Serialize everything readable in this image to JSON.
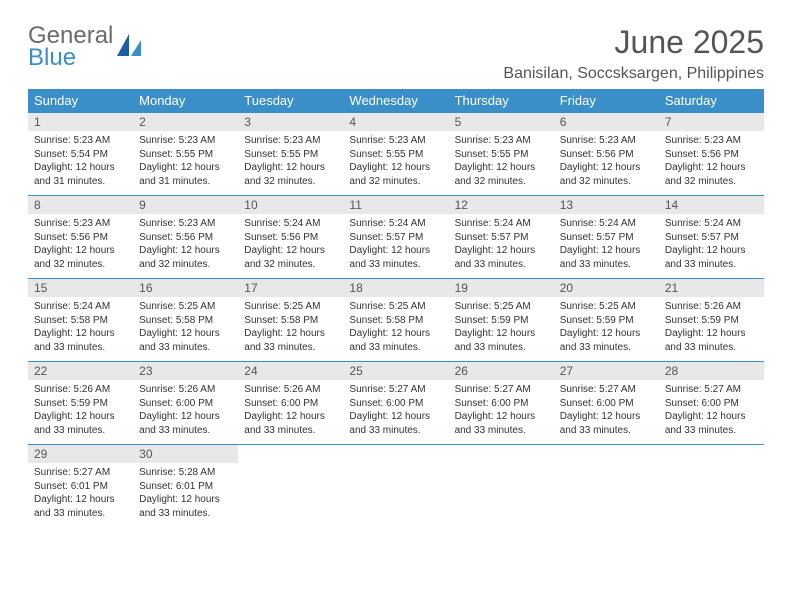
{
  "logo": {
    "line1": "General",
    "line2": "Blue"
  },
  "colors": {
    "brand_blue": "#3a8fc9",
    "text_gray": "#6b6b6b"
  },
  "title": "June 2025",
  "location": "Banisilan, Soccsksargen, Philippines",
  "weekdays": [
    "Sunday",
    "Monday",
    "Tuesday",
    "Wednesday",
    "Thursday",
    "Friday",
    "Saturday"
  ],
  "days": [
    {
      "n": "1",
      "sunrise": "5:23 AM",
      "sunset": "5:54 PM",
      "daylight": "12 hours and 31 minutes."
    },
    {
      "n": "2",
      "sunrise": "5:23 AM",
      "sunset": "5:55 PM",
      "daylight": "12 hours and 31 minutes."
    },
    {
      "n": "3",
      "sunrise": "5:23 AM",
      "sunset": "5:55 PM",
      "daylight": "12 hours and 32 minutes."
    },
    {
      "n": "4",
      "sunrise": "5:23 AM",
      "sunset": "5:55 PM",
      "daylight": "12 hours and 32 minutes."
    },
    {
      "n": "5",
      "sunrise": "5:23 AM",
      "sunset": "5:55 PM",
      "daylight": "12 hours and 32 minutes."
    },
    {
      "n": "6",
      "sunrise": "5:23 AM",
      "sunset": "5:56 PM",
      "daylight": "12 hours and 32 minutes."
    },
    {
      "n": "7",
      "sunrise": "5:23 AM",
      "sunset": "5:56 PM",
      "daylight": "12 hours and 32 minutes."
    },
    {
      "n": "8",
      "sunrise": "5:23 AM",
      "sunset": "5:56 PM",
      "daylight": "12 hours and 32 minutes."
    },
    {
      "n": "9",
      "sunrise": "5:23 AM",
      "sunset": "5:56 PM",
      "daylight": "12 hours and 32 minutes."
    },
    {
      "n": "10",
      "sunrise": "5:24 AM",
      "sunset": "5:56 PM",
      "daylight": "12 hours and 32 minutes."
    },
    {
      "n": "11",
      "sunrise": "5:24 AM",
      "sunset": "5:57 PM",
      "daylight": "12 hours and 33 minutes."
    },
    {
      "n": "12",
      "sunrise": "5:24 AM",
      "sunset": "5:57 PM",
      "daylight": "12 hours and 33 minutes."
    },
    {
      "n": "13",
      "sunrise": "5:24 AM",
      "sunset": "5:57 PM",
      "daylight": "12 hours and 33 minutes."
    },
    {
      "n": "14",
      "sunrise": "5:24 AM",
      "sunset": "5:57 PM",
      "daylight": "12 hours and 33 minutes."
    },
    {
      "n": "15",
      "sunrise": "5:24 AM",
      "sunset": "5:58 PM",
      "daylight": "12 hours and 33 minutes."
    },
    {
      "n": "16",
      "sunrise": "5:25 AM",
      "sunset": "5:58 PM",
      "daylight": "12 hours and 33 minutes."
    },
    {
      "n": "17",
      "sunrise": "5:25 AM",
      "sunset": "5:58 PM",
      "daylight": "12 hours and 33 minutes."
    },
    {
      "n": "18",
      "sunrise": "5:25 AM",
      "sunset": "5:58 PM",
      "daylight": "12 hours and 33 minutes."
    },
    {
      "n": "19",
      "sunrise": "5:25 AM",
      "sunset": "5:59 PM",
      "daylight": "12 hours and 33 minutes."
    },
    {
      "n": "20",
      "sunrise": "5:25 AM",
      "sunset": "5:59 PM",
      "daylight": "12 hours and 33 minutes."
    },
    {
      "n": "21",
      "sunrise": "5:26 AM",
      "sunset": "5:59 PM",
      "daylight": "12 hours and 33 minutes."
    },
    {
      "n": "22",
      "sunrise": "5:26 AM",
      "sunset": "5:59 PM",
      "daylight": "12 hours and 33 minutes."
    },
    {
      "n": "23",
      "sunrise": "5:26 AM",
      "sunset": "6:00 PM",
      "daylight": "12 hours and 33 minutes."
    },
    {
      "n": "24",
      "sunrise": "5:26 AM",
      "sunset": "6:00 PM",
      "daylight": "12 hours and 33 minutes."
    },
    {
      "n": "25",
      "sunrise": "5:27 AM",
      "sunset": "6:00 PM",
      "daylight": "12 hours and 33 minutes."
    },
    {
      "n": "26",
      "sunrise": "5:27 AM",
      "sunset": "6:00 PM",
      "daylight": "12 hours and 33 minutes."
    },
    {
      "n": "27",
      "sunrise": "5:27 AM",
      "sunset": "6:00 PM",
      "daylight": "12 hours and 33 minutes."
    },
    {
      "n": "28",
      "sunrise": "5:27 AM",
      "sunset": "6:00 PM",
      "daylight": "12 hours and 33 minutes."
    },
    {
      "n": "29",
      "sunrise": "5:27 AM",
      "sunset": "6:01 PM",
      "daylight": "12 hours and 33 minutes."
    },
    {
      "n": "30",
      "sunrise": "5:28 AM",
      "sunset": "6:01 PM",
      "daylight": "12 hours and 33 minutes."
    }
  ],
  "labels": {
    "sunrise": "Sunrise: ",
    "sunset": "Sunset: ",
    "daylight": "Daylight: "
  },
  "layout": {
    "start_weekday_index": 0,
    "trailing_blanks": 5
  }
}
